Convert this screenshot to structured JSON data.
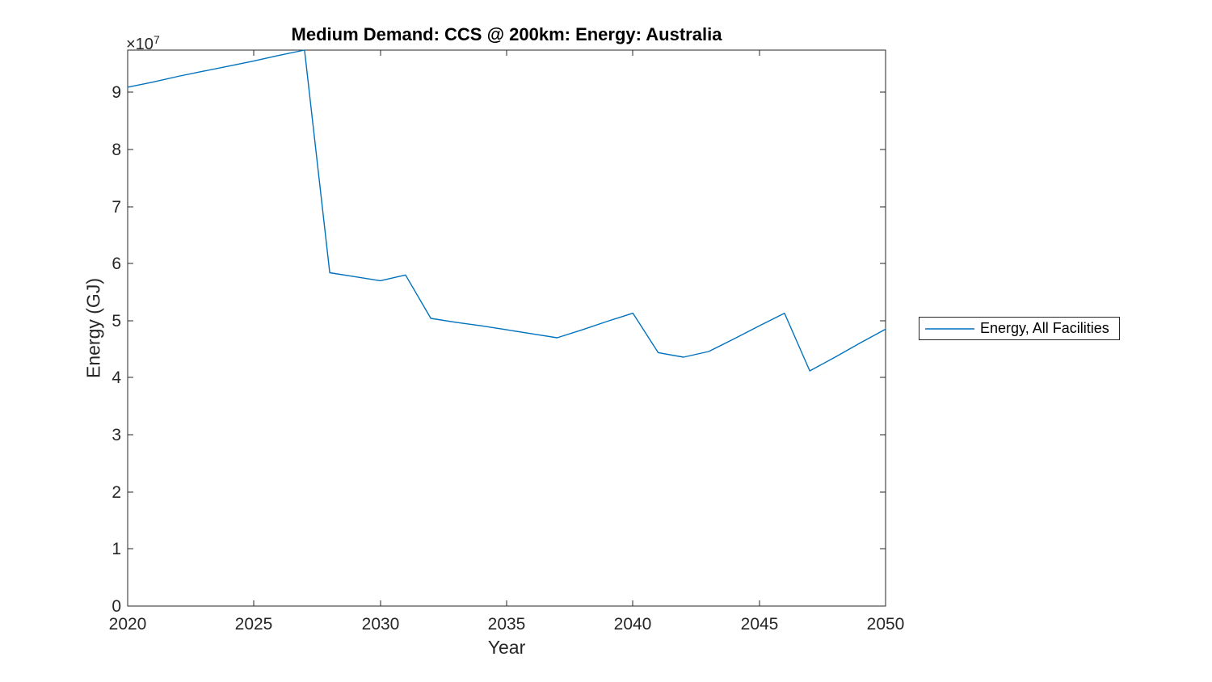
{
  "chart_data": {
    "type": "line",
    "title": "Medium Demand: CCS @ 200km: Energy: Australia",
    "xlabel": "Year",
    "ylabel": "Energy (GJ)",
    "y_multiplier": {
      "base": "×10",
      "exponent": "7"
    },
    "grid": false,
    "box": true,
    "xlim": [
      2020,
      2050
    ],
    "ylim": [
      0,
      97400000
    ],
    "x_ticks": [
      2020,
      2025,
      2030,
      2035,
      2040,
      2045,
      2050
    ],
    "x_tick_labels": [
      "2020",
      "2025",
      "2030",
      "2035",
      "2040",
      "2045",
      "2050"
    ],
    "y_ticks": [
      0,
      10000000,
      20000000,
      30000000,
      40000000,
      50000000,
      60000000,
      70000000,
      80000000,
      90000000
    ],
    "y_tick_labels": [
      "0",
      "1",
      "2",
      "3",
      "4",
      "5",
      "6",
      "7",
      "8",
      "9"
    ],
    "legend": {
      "position": "outside-right-center",
      "entries": [
        "Energy, All Facilities"
      ]
    },
    "series": [
      {
        "name": "Energy, All Facilities",
        "color": "#0072BD",
        "x": [
          2020,
          2021,
          2022,
          2023,
          2024,
          2025,
          2026,
          2027,
          2028,
          2029,
          2030,
          2031,
          2032,
          2033,
          2034,
          2035,
          2036,
          2037,
          2038,
          2039,
          2040,
          2041,
          2042,
          2043,
          2044,
          2045,
          2046,
          2047,
          2048,
          2049,
          2050
        ],
        "y": [
          90900000,
          91800000,
          92800000,
          93700000,
          94600000,
          95500000,
          96500000,
          97400000,
          58400000,
          57700000,
          57000000,
          58000000,
          50400000,
          49700000,
          49100000,
          48400000,
          47700000,
          47000000,
          48400000,
          49900000,
          51300000,
          44400000,
          43600000,
          44600000,
          46800000,
          49100000,
          51300000,
          41200000,
          43600000,
          46100000,
          48500000
        ]
      }
    ],
    "axis_color": "#262626"
  }
}
